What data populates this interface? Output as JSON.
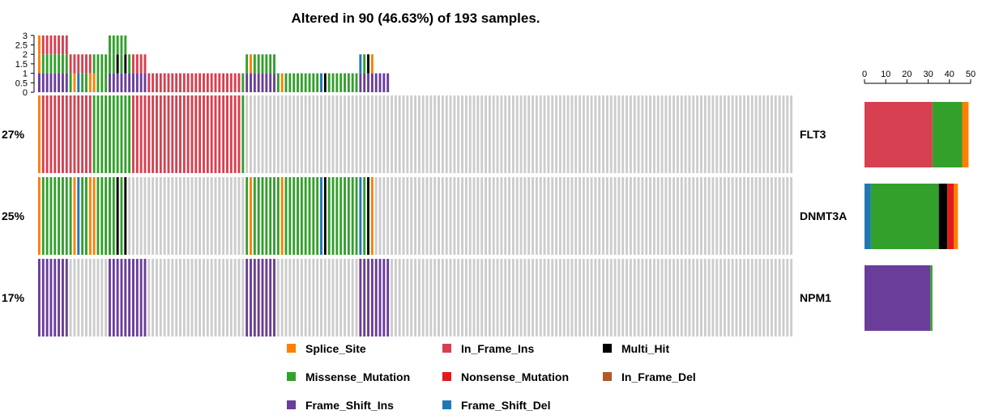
{
  "chart_data": {
    "type": "oncoplot",
    "title": "Altered in 90 (46.63%) of 193 samples.",
    "n_samples": 193,
    "n_columns_drawn": 193,
    "genes": [
      {
        "name": "FLT3",
        "percent": "27%"
      },
      {
        "name": "DNMT3A",
        "percent": "25%"
      },
      {
        "name": "NPM1",
        "percent": "17%"
      }
    ],
    "colors": {
      "Splice_Site": "#ff7f00",
      "In_Frame_Ins": "#d64050",
      "Multi_Hit": "#000000",
      "Missense_Mutation": "#33a02c",
      "Nonsense_Mutation": "#e31a1c",
      "In_Frame_Del": "#b15928",
      "Frame_Shift_Ins": "#6a3d9a",
      "Frame_Shift_Del": "#1f78b4",
      "none": "#cccccc"
    },
    "legend": [
      {
        "label": "Splice_Site",
        "key": "Splice_Site"
      },
      {
        "label": "In_Frame_Ins",
        "key": "In_Frame_Ins"
      },
      {
        "label": "Multi_Hit",
        "key": "Multi_Hit"
      },
      {
        "label": "Missense_Mutation",
        "key": "Missense_Mutation"
      },
      {
        "label": "Nonsense_Mutation",
        "key": "Nonsense_Mutation"
      },
      {
        "label": "In_Frame_Del",
        "key": "In_Frame_Del"
      },
      {
        "label": "Frame_Shift_Ins",
        "key": "Frame_Shift_Ins"
      },
      {
        "label": "Frame_Shift_Del",
        "key": "Frame_Shift_Del"
      }
    ],
    "top_axis": {
      "ticks": [
        "0",
        "0.5",
        "1",
        "1.5",
        "2",
        "2.5",
        "3"
      ],
      "range": [
        0,
        3
      ]
    },
    "side_axis": {
      "ticks": [
        "0",
        "10",
        "20",
        "30",
        "40",
        "50"
      ],
      "range": [
        0,
        50
      ]
    },
    "matrix": {
      "FLT3": [
        "SS",
        "IFI",
        "IFI",
        "IFI",
        "IFI",
        "IFI",
        "IFI",
        "IFI",
        "IFI",
        "IFI",
        "IFI",
        "IFI",
        "IFI",
        "IFI",
        "MS",
        "MS",
        "MS",
        "MS",
        "MS",
        "MS",
        "MS",
        "MS",
        "MS",
        "MS",
        "IFI",
        "IFI",
        "IFI",
        "IFI",
        "IFI",
        "IFI",
        "IFI",
        "IFI",
        "IFI",
        "IFI",
        "IFI",
        "IFI",
        "IFI",
        "IFI",
        "IFI",
        "IFI",
        "IFI",
        "IFI",
        "IFI",
        "IFI",
        "IFI",
        "IFI",
        "IFI",
        "IFI",
        "IFI",
        "IFI",
        "IFI",
        "IFI",
        "MS"
      ],
      "DNMT3A": [
        "SS",
        "MS",
        "MS",
        "MS",
        "MS",
        "MS",
        "MS",
        "MS",
        "MS",
        "SS",
        "FSD",
        "MS",
        "MS",
        "SS",
        "SS",
        "MS",
        "MS",
        "MS",
        "MS",
        "MS",
        "MH",
        "MS",
        "MH",
        "",
        "",
        "",
        "",
        "",
        "",
        "",
        "",
        "",
        "",
        "",
        "",
        "",
        "",
        "",
        "",
        "",
        "",
        "",
        "",
        "",
        "",
        "",
        "",
        "",
        "",
        "",
        "",
        "",
        "",
        "MS",
        "SS",
        "MS",
        "MS",
        "MS",
        "MS",
        "MS",
        "MS",
        "MS",
        "SS",
        "MS",
        "MS",
        "MS",
        "MS",
        "MS",
        "MS",
        "MS",
        "MS",
        "MS",
        "FSD",
        "MH",
        "MS",
        "MS",
        "MS",
        "MS",
        "MS",
        "MS",
        "MS",
        "MS",
        "FSD",
        "MS",
        "MH",
        "SS"
      ],
      "NPM1": [
        "FSI",
        "FSI",
        "FSI",
        "FSI",
        "FSI",
        "FSI",
        "FSI",
        "FSI",
        "",
        "",
        "",
        "",
        "",
        "",
        "",
        "",
        "",
        "",
        "FSI",
        "FSI",
        "FSI",
        "FSI",
        "FSI",
        "FSI",
        "FSI",
        "FSI",
        "FSI",
        "FSI",
        "",
        "",
        "",
        "",
        "",
        "",
        "",
        "",
        "",
        "",
        "",
        "",
        "",
        "",
        "",
        "",
        "",
        "",
        "",
        "",
        "",
        "",
        "",
        "",
        "",
        "FSI",
        "FSI",
        "FSI",
        "FSI",
        "FSI",
        "FSI",
        "FSI",
        "FSI",
        "",
        "",
        "",
        "",
        "",
        "",
        "",
        "",
        "",
        "",
        "",
        "",
        "",
        "",
        "",
        "",
        "",
        "",
        "",
        "",
        "",
        "FSI",
        "FSI",
        "FSI",
        "FSI",
        "FSI",
        "FSI",
        "FSI",
        "FSI"
      ]
    },
    "side_bars": {
      "FLT3": [
        {
          "type": "In_Frame_Ins",
          "value": 32
        },
        {
          "type": "Missense_Mutation",
          "value": 14
        },
        {
          "type": "Splice_Site",
          "value": 3
        }
      ],
      "DNMT3A": [
        {
          "type": "Frame_Shift_Del",
          "value": 3
        },
        {
          "type": "Missense_Mutation",
          "value": 32
        },
        {
          "type": "Multi_Hit",
          "value": 4
        },
        {
          "type": "Nonsense_Mutation",
          "value": 3
        },
        {
          "type": "Splice_Site",
          "value": 2
        }
      ],
      "NPM1": [
        {
          "type": "Frame_Shift_Ins",
          "value": 31
        },
        {
          "type": "Missense_Mutation",
          "value": 1
        }
      ]
    }
  }
}
